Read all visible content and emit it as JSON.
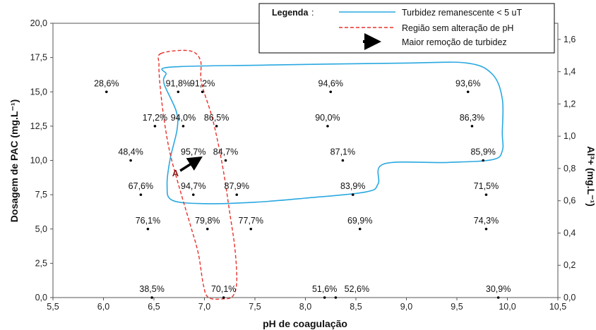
{
  "chart_data": {
    "type": "scatter",
    "xlabel": "pH de coagulação",
    "ylabel": "Dosagem de PAC (mg.L⁻¹)",
    "y2label": "Al³+ (mg.L⁻¹)",
    "xlim": [
      5.5,
      10.5
    ],
    "ylim": [
      0,
      20
    ],
    "y2lim": [
      0,
      1.7
    ],
    "x_ticks": [
      "5,5",
      "6,0",
      "6,5",
      "7,0",
      "7,5",
      "8,0",
      "8,5",
      "9,0",
      "9,5",
      "10,0",
      "10,5"
    ],
    "y_ticks": [
      "0,0",
      "2,5",
      "5,0",
      "7,5",
      "10,0",
      "12,5",
      "15,0",
      "17,5",
      "20,0"
    ],
    "y2_ticks": [
      "0,0",
      "0,2",
      "0,4",
      "0,6",
      "0,8",
      "1,0",
      "1,2",
      "1,4",
      "1,6"
    ],
    "points": [
      {
        "x": 6.03,
        "y": 15.0,
        "label": "28,6%"
      },
      {
        "x": 6.74,
        "y": 15.0,
        "label": "91,8%"
      },
      {
        "x": 6.98,
        "y": 15.0,
        "label": "91,2%"
      },
      {
        "x": 8.25,
        "y": 15.0,
        "label": "94,6%"
      },
      {
        "x": 9.61,
        "y": 15.0,
        "label": "93,6%"
      },
      {
        "x": 6.51,
        "y": 12.5,
        "label": "17,2%"
      },
      {
        "x": 6.79,
        "y": 12.5,
        "label": "94,0%"
      },
      {
        "x": 7.12,
        "y": 12.5,
        "label": "86,5%"
      },
      {
        "x": 8.22,
        "y": 12.5,
        "label": "90,0%"
      },
      {
        "x": 9.65,
        "y": 12.5,
        "label": "86,3%"
      },
      {
        "x": 6.27,
        "y": 10.0,
        "label": "48,4%"
      },
      {
        "x": 6.89,
        "y": 10.0,
        "label": "95,7%"
      },
      {
        "x": 7.21,
        "y": 10.0,
        "label": "84,7%"
      },
      {
        "x": 8.37,
        "y": 10.0,
        "label": "87,1%"
      },
      {
        "x": 9.76,
        "y": 10.0,
        "label": "85,9%"
      },
      {
        "x": 6.37,
        "y": 7.5,
        "label": "67,6%"
      },
      {
        "x": 6.89,
        "y": 7.5,
        "label": "94,7%"
      },
      {
        "x": 7.32,
        "y": 7.5,
        "label": "87,9%"
      },
      {
        "x": 8.47,
        "y": 7.5,
        "label": "83,9%"
      },
      {
        "x": 9.79,
        "y": 7.5,
        "label": "71,5%"
      },
      {
        "x": 6.44,
        "y": 5.0,
        "label": "76,1%"
      },
      {
        "x": 7.03,
        "y": 5.0,
        "label": "79,8%"
      },
      {
        "x": 7.46,
        "y": 5.0,
        "label": "77,7%"
      },
      {
        "x": 8.54,
        "y": 5.0,
        "label": "69,9%"
      },
      {
        "x": 9.79,
        "y": 5.0,
        "label": "74,3%"
      },
      {
        "x": 6.48,
        "y": 0.0,
        "label": "38,5%"
      },
      {
        "x": 7.19,
        "y": 0.0,
        "label": "70,1%"
      },
      {
        "x": 8.19,
        "y": 0.0,
        "label": "51,6%"
      },
      {
        "x": 8.3,
        "y": 0.0,
        "label": "",
        "note": "52,6% label belongs to nearby point"
      },
      {
        "x": 9.91,
        "y": 0.0,
        "label": "30,9%"
      }
    ],
    "extra_label": {
      "x": 8.37,
      "y": 0.0,
      "label": "52,6%"
    },
    "legend": {
      "position": "top-right",
      "title": "Legenda",
      "entries": [
        {
          "label": "Turbidez remanescente < 5 uT",
          "color": "#2aa8e0",
          "style": "solid"
        },
        {
          "label": "Região sem alteração de pH",
          "color": "#e8302a",
          "style": "dashed"
        },
        {
          "label": "Maior remoção de turbidez",
          "color": "#000000",
          "style": "arrow"
        }
      ]
    },
    "annotation": {
      "label": "A"
    },
    "blue_region": [
      [
        6.66,
        16.8
      ],
      [
        7.6,
        16.95
      ],
      [
        9.0,
        17.1
      ],
      [
        9.6,
        17.1
      ],
      [
        9.85,
        16.3
      ],
      [
        9.95,
        14.5
      ],
      [
        9.95,
        12.0
      ],
      [
        9.95,
        10.7
      ],
      [
        9.85,
        10.05
      ],
      [
        9.4,
        9.85
      ],
      [
        8.78,
        9.75
      ],
      [
        8.72,
        8.3
      ],
      [
        8.6,
        7.7
      ],
      [
        8.0,
        7.25
      ],
      [
        7.5,
        6.95
      ],
      [
        7.0,
        6.85
      ],
      [
        6.68,
        7.1
      ],
      [
        6.63,
        8.2
      ],
      [
        6.66,
        10.1
      ],
      [
        6.73,
        12.3
      ],
      [
        6.72,
        13.6
      ],
      [
        6.6,
        15.6
      ],
      [
        6.62,
        16.3
      ]
    ],
    "red_region": [
      [
        6.57,
        17.8
      ],
      [
        6.85,
        18.0
      ],
      [
        6.96,
        17.3
      ],
      [
        6.97,
        15.7
      ],
      [
        7.07,
        13.3
      ],
      [
        7.14,
        11.1
      ],
      [
        7.2,
        8.7
      ],
      [
        7.25,
        6.2
      ],
      [
        7.3,
        3.7
      ],
      [
        7.32,
        1.2
      ],
      [
        7.28,
        0.1
      ],
      [
        7.18,
        -0.1
      ],
      [
        7.04,
        0.0
      ],
      [
        6.99,
        0.9
      ],
      [
        6.94,
        3.2
      ],
      [
        6.86,
        5.3
      ],
      [
        6.76,
        7.8
      ],
      [
        6.66,
        10.5
      ],
      [
        6.6,
        13.0
      ],
      [
        6.56,
        15.5
      ],
      [
        6.55,
        17.0
      ]
    ],
    "arrow": {
      "from": [
        6.76,
        9.25
      ],
      "to": [
        6.92,
        10.0
      ]
    }
  }
}
